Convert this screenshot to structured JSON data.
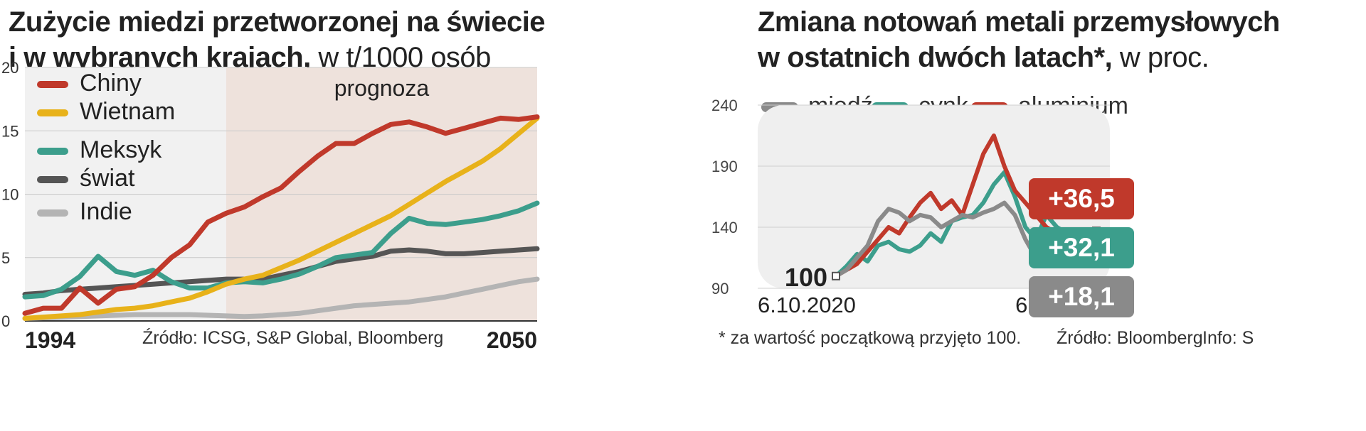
{
  "left": {
    "title_line1": "Zużycie miedzi przetworzonej  na świecie",
    "title_line2": "i w wybranych krajach,",
    "title_unit": " w t/1000 osób",
    "forecast_label": "prognoza",
    "x_start_label": "1994",
    "x_end_label": "2050",
    "source": "Źródło: ICSG, S&P Global, Bloomberg",
    "legend": [
      {
        "name": "Chiny",
        "color": "#c0392b"
      },
      {
        "name": "Wietnam",
        "color": "#e8b21a"
      },
      {
        "name": "Meksyk",
        "color": "#3c9e8c"
      },
      {
        "name": "świat",
        "color": "#555555"
      },
      {
        "name": "Indie",
        "color": "#b4b4b4"
      }
    ]
  },
  "right": {
    "title_line1": "Zmiana notowań metali przemysłowych",
    "title_line2": "w ostatnich dwóch latach*,",
    "title_unit": " w proc.",
    "legend": [
      {
        "name": "miedź",
        "color": "#8a8a8a"
      },
      {
        "name": "cynk",
        "color": "#3c9e8c"
      },
      {
        "name": "aluminium",
        "color": "#c0392b"
      }
    ],
    "start_value_label": "100",
    "x_start_label": "6.10.2020",
    "x_end_label": "6.10.2022",
    "badges": [
      {
        "label": "+36,5",
        "color": "#c0392b"
      },
      {
        "label": "+32,1",
        "color": "#3c9e8c"
      },
      {
        "label": "+18,1",
        "color": "#8a8a8a"
      }
    ],
    "footnote": "* za wartość początkową przyjęto 100.",
    "source": "Źródło: Bloomberg",
    "info": "Info: S"
  },
  "chart_data": [
    {
      "type": "line",
      "title": "Zużycie miedzi przetworzonej  na świecie i w wybranych krajach, w t/1000 osób",
      "xlim": [
        1994,
        2050
      ],
      "ylim": [
        0,
        20
      ],
      "yticks": [
        0,
        5,
        10,
        15,
        20
      ],
      "forecast_from": 2016,
      "x": [
        1994,
        1996,
        1998,
        2000,
        2002,
        2004,
        2006,
        2008,
        2010,
        2012,
        2014,
        2016,
        2018,
        2020,
        2022,
        2024,
        2026,
        2028,
        2030,
        2032,
        2034,
        2036,
        2038,
        2040,
        2042,
        2044,
        2046,
        2048,
        2050
      ],
      "series": [
        {
          "name": "Chiny",
          "values": [
            0.6,
            1.0,
            1.0,
            2.6,
            1.4,
            2.5,
            2.7,
            3.6,
            5.0,
            6.0,
            7.8,
            8.5,
            9.0,
            9.8,
            10.5,
            11.8,
            13.0,
            14.0,
            14.0,
            14.8,
            15.5,
            15.7,
            15.3,
            14.8,
            15.2,
            15.6,
            16.0,
            15.9,
            16.1
          ]
        },
        {
          "name": "Wietnam",
          "values": [
            0.2,
            0.3,
            0.4,
            0.5,
            0.7,
            0.9,
            1.0,
            1.2,
            1.5,
            1.8,
            2.3,
            2.9,
            3.3,
            3.6,
            4.2,
            4.8,
            5.5,
            6.2,
            6.9,
            7.6,
            8.3,
            9.2,
            10.1,
            11.0,
            11.8,
            12.6,
            13.6,
            14.8,
            16.0
          ]
        },
        {
          "name": "Meksyk",
          "values": [
            1.9,
            2.0,
            2.5,
            3.5,
            5.1,
            3.9,
            3.6,
            4.0,
            3.1,
            2.6,
            2.6,
            3.0,
            3.1,
            3.0,
            3.3,
            3.7,
            4.3,
            5.0,
            5.2,
            5.4,
            6.9,
            8.1,
            7.7,
            7.6,
            7.8,
            8.0,
            8.3,
            8.7,
            9.3
          ]
        },
        {
          "name": "świat",
          "values": [
            2.1,
            2.2,
            2.4,
            2.5,
            2.6,
            2.7,
            2.8,
            2.9,
            3.0,
            3.1,
            3.2,
            3.3,
            3.3,
            3.3,
            3.6,
            3.9,
            4.3,
            4.7,
            4.9,
            5.1,
            5.5,
            5.6,
            5.5,
            5.3,
            5.3,
            5.4,
            5.5,
            5.6,
            5.7
          ]
        },
        {
          "name": "Indie",
          "values": [
            0.2,
            0.25,
            0.3,
            0.35,
            0.4,
            0.45,
            0.5,
            0.5,
            0.5,
            0.5,
            0.45,
            0.4,
            0.35,
            0.4,
            0.5,
            0.6,
            0.8,
            1.0,
            1.2,
            1.3,
            1.4,
            1.5,
            1.7,
            1.9,
            2.2,
            2.5,
            2.8,
            3.1,
            3.3
          ]
        }
      ]
    },
    {
      "type": "line",
      "title": "Zmiana notowań metali przemysłowych w ostatnich dwóch latach*, w proc.",
      "x_labels": [
        "6.10.2020",
        "6.10.2022"
      ],
      "ylim": [
        90,
        240
      ],
      "yticks": [
        90,
        140,
        190,
        240
      ],
      "x_months": [
        0,
        1,
        2,
        3,
        4,
        5,
        6,
        7,
        8,
        9,
        10,
        11,
        12,
        13,
        14,
        15,
        16,
        17,
        18,
        19,
        20,
        21,
        22,
        23,
        24
      ],
      "series": [
        {
          "name": "miedź",
          "final_change": "+18,1",
          "values": [
            100,
            105,
            115,
            125,
            145,
            155,
            152,
            145,
            150,
            148,
            140,
            145,
            150,
            148,
            152,
            155,
            160,
            150,
            130,
            115,
            120,
            118,
            122,
            118,
            118
          ]
        },
        {
          "name": "cynk",
          "final_change": "+32,1",
          "values": [
            100,
            108,
            118,
            112,
            125,
            128,
            122,
            120,
            125,
            135,
            128,
            145,
            148,
            150,
            160,
            175,
            185,
            165,
            140,
            130,
            150,
            140,
            135,
            130,
            132
          ]
        },
        {
          "name": "aluminium",
          "final_change": "+36,5",
          "values": [
            100,
            105,
            110,
            120,
            130,
            140,
            135,
            148,
            160,
            168,
            155,
            162,
            150,
            175,
            200,
            215,
            190,
            170,
            160,
            150,
            140,
            135,
            130,
            128,
            137
          ]
        }
      ]
    }
  ]
}
